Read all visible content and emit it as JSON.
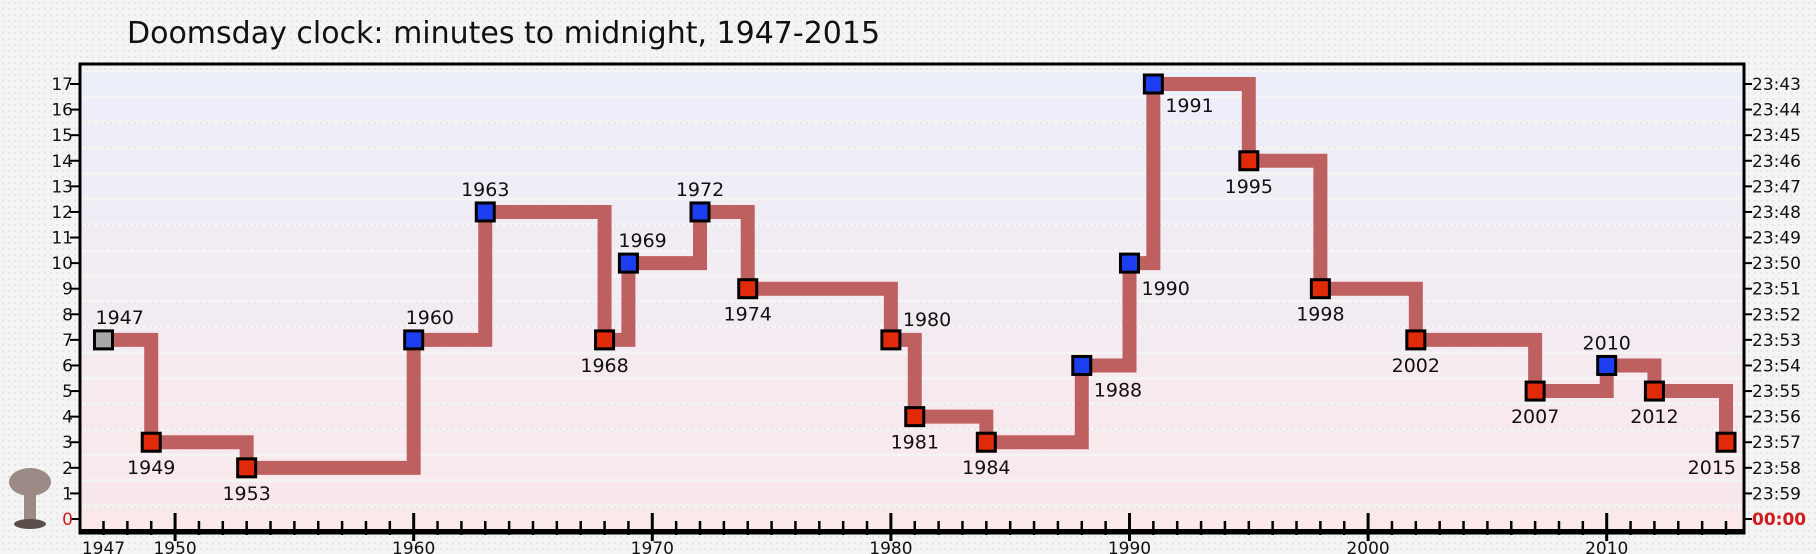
{
  "chart_data": {
    "type": "line",
    "title": "Doomsday clock: minutes to midnight, 1947-2015",
    "xlim": [
      1947,
      2015
    ],
    "ylim": [
      0,
      17
    ],
    "x_ticks": [
      1947,
      1950,
      1960,
      1970,
      1980,
      1990,
      2000,
      2010
    ],
    "y_ticks": [
      17,
      16,
      15,
      14,
      13,
      12,
      11,
      10,
      9,
      8,
      7,
      6,
      5,
      4,
      3,
      2,
      1,
      0
    ],
    "right_axis_labels": [
      "23:43",
      "23:44",
      "23:45",
      "23:46",
      "23:47",
      "23:48",
      "23:49",
      "23:50",
      "23:51",
      "23:52",
      "23:53",
      "23:54",
      "23:55",
      "23:56",
      "23:57",
      "23:58",
      "23:59",
      "00:00"
    ],
    "grid": true,
    "line_color": "#bf6060",
    "marker_colors": {
      "start": "#a8a8a8",
      "closer": "#e02a0a",
      "further": "#1d3ef0"
    },
    "icon": "mushroom-cloud-icon",
    "series": [
      {
        "points": [
          {
            "x": 1947,
            "y": 7,
            "label": "1947",
            "kind": "start"
          },
          {
            "x": 1949,
            "y": 3,
            "label": "1949",
            "kind": "closer"
          },
          {
            "x": 1953,
            "y": 2,
            "label": "1953",
            "kind": "closer"
          },
          {
            "x": 1960,
            "y": 7,
            "label": "1960",
            "kind": "further"
          },
          {
            "x": 1963,
            "y": 12,
            "label": "1963",
            "kind": "further"
          },
          {
            "x": 1968,
            "y": 7,
            "label": "1968",
            "kind": "closer"
          },
          {
            "x": 1969,
            "y": 10,
            "label": "1969",
            "kind": "further"
          },
          {
            "x": 1972,
            "y": 12,
            "label": "1972",
            "kind": "further"
          },
          {
            "x": 1974,
            "y": 9,
            "label": "1974",
            "kind": "closer"
          },
          {
            "x": 1980,
            "y": 7,
            "label": "1980",
            "kind": "closer"
          },
          {
            "x": 1981,
            "y": 4,
            "label": "1981",
            "kind": "closer"
          },
          {
            "x": 1984,
            "y": 3,
            "label": "1984",
            "kind": "closer"
          },
          {
            "x": 1988,
            "y": 6,
            "label": "1988",
            "kind": "further"
          },
          {
            "x": 1990,
            "y": 10,
            "label": "1990",
            "kind": "further"
          },
          {
            "x": 1991,
            "y": 17,
            "label": "1991",
            "kind": "further"
          },
          {
            "x": 1995,
            "y": 14,
            "label": "1995",
            "kind": "closer"
          },
          {
            "x": 1998,
            "y": 9,
            "label": "1998",
            "kind": "closer"
          },
          {
            "x": 2002,
            "y": 7,
            "label": "2002",
            "kind": "closer"
          },
          {
            "x": 2007,
            "y": 5,
            "label": "2007",
            "kind": "closer"
          },
          {
            "x": 2010,
            "y": 6,
            "label": "2010",
            "kind": "further"
          },
          {
            "x": 2012,
            "y": 5,
            "label": "2012",
            "kind": "closer"
          },
          {
            "x": 2015,
            "y": 3,
            "label": "2015",
            "kind": "closer"
          }
        ]
      }
    ]
  }
}
